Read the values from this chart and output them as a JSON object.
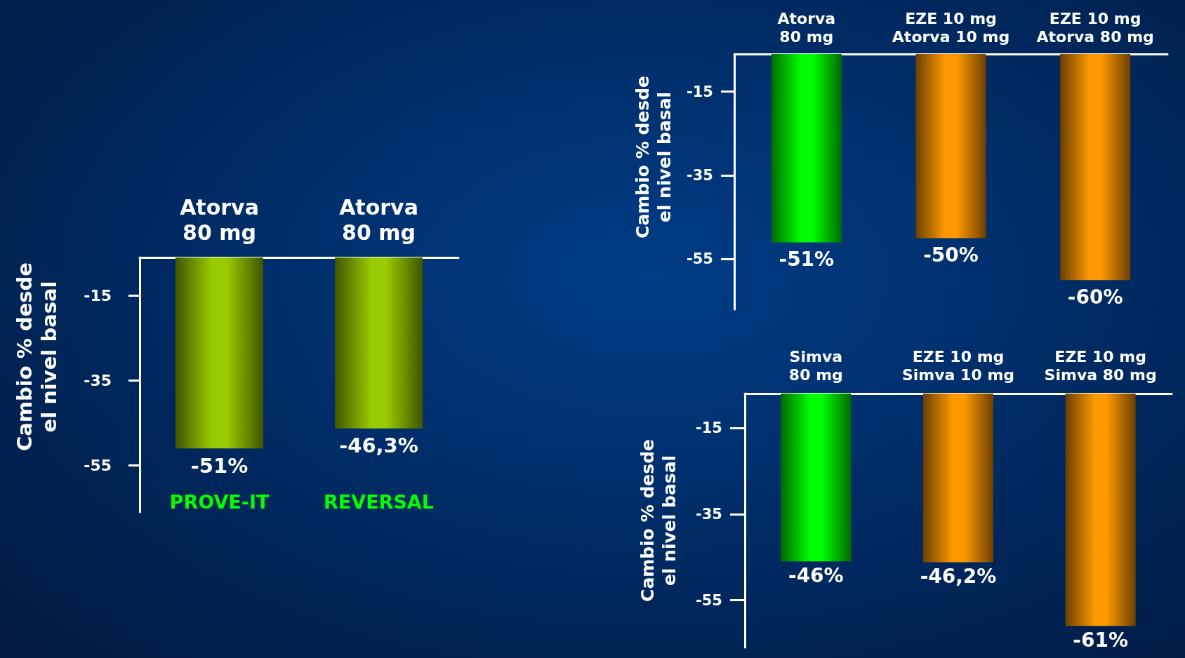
{
  "chart_data": [
    {
      "type": "bar",
      "categories": [
        "Atorva\n80 mg",
        "Atorva\n80 mg"
      ],
      "values": [
        -51,
        -46.3
      ],
      "colors": [
        "#99cc00",
        "#99cc00"
      ],
      "value_labels": [
        "-51%",
        "-46,3%"
      ],
      "ylabel": "Cambio % desde\nel nivel basal",
      "ylim": [
        -66,
        -6
      ],
      "yticks": [
        -15,
        -35,
        -55
      ],
      "annotations": [
        "PROVE-IT",
        "REVERSAL"
      ]
    },
    {
      "type": "bar",
      "categories": [
        "Atorva\n80 mg",
        "EZE 10 mg\nAtorva 10 mg",
        "EZE 10 mg\nAtorva 80 mg"
      ],
      "values": [
        -51,
        -50,
        -60
      ],
      "colors": [
        "#00ff00",
        "#ff9900",
        "#ff9900"
      ],
      "value_labels": [
        "-51%",
        "-50%",
        "-60%"
      ],
      "ylabel": "Cambio % desde\nel nivel basal",
      "ylim": [
        -67,
        -6
      ],
      "yticks": [
        -15,
        -35,
        -55
      ]
    },
    {
      "type": "bar",
      "categories": [
        "Simva\n80 mg",
        "EZE 10 mg\nSimva 10 mg",
        "EZE 10 mg\nSimva 80 mg"
      ],
      "values": [
        -46,
        -46.2,
        -61
      ],
      "colors": [
        "#00ff00",
        "#ff9900",
        "#ff9900"
      ],
      "value_labels": [
        "-46%",
        "-46,2%",
        "-61%"
      ],
      "ylabel": "Cambio % desde\nel nivel basal",
      "ylim": [
        -66,
        -7
      ],
      "yticks": [
        -15,
        -35,
        -55
      ]
    }
  ]
}
